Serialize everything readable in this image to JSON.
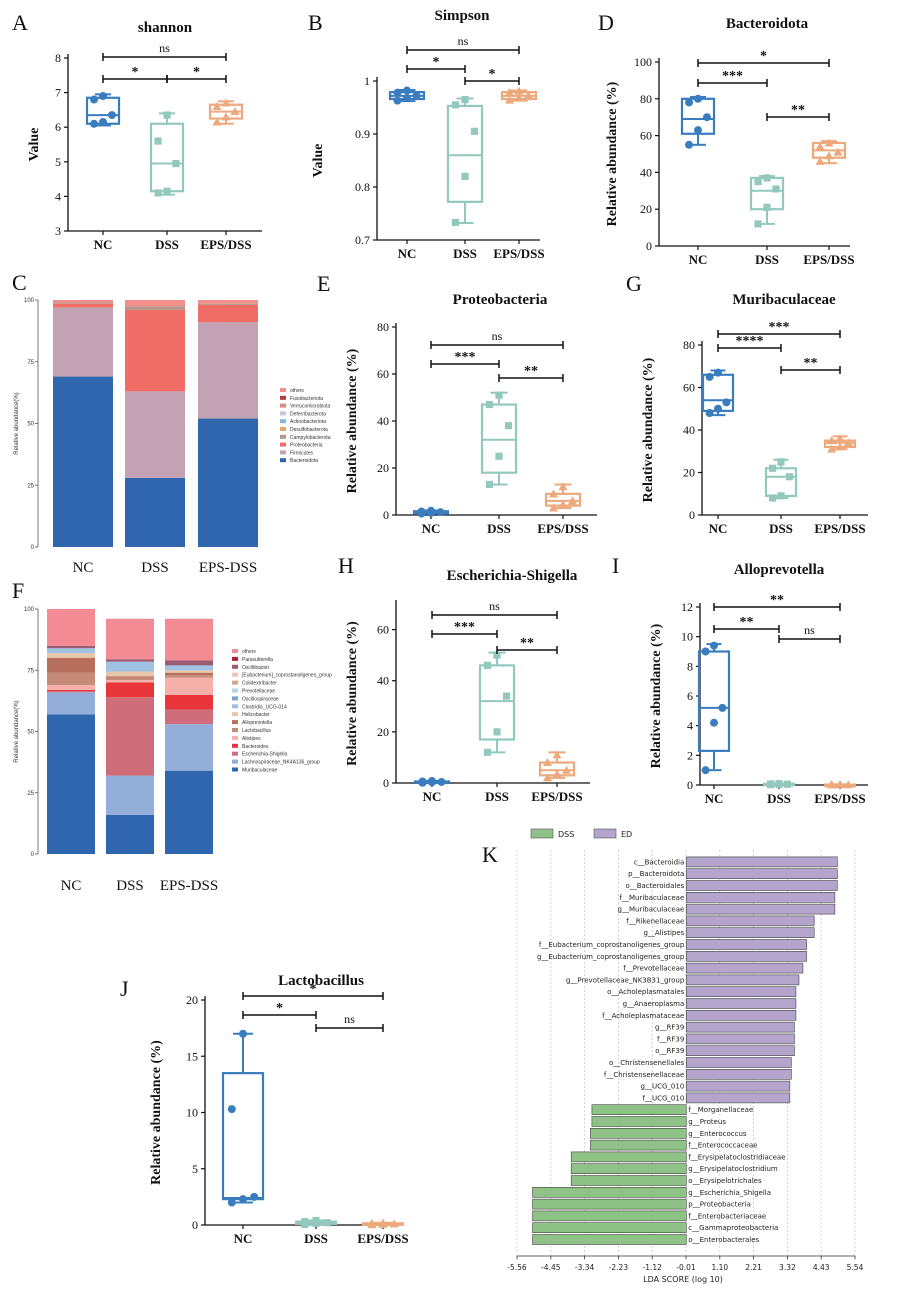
{
  "colors": {
    "NC": "#3a7dbf",
    "DSS": "#93c9bd",
    "EPS": "#eda87c",
    "ink": "#111111",
    "lda_dss": "#8fc286",
    "lda_ed": "#b4a5cd"
  },
  "chart_data": [
    {
      "panel": "A",
      "type": "box",
      "title": "shannon",
      "ylabel": "Value",
      "ylim": [
        3,
        8
      ],
      "yticks": [
        3,
        4,
        5,
        6,
        7,
        8
      ],
      "categories": [
        "NC",
        "DSS",
        "EPS/DSS"
      ],
      "groups": [
        {
          "q1": 6.1,
          "med": 6.35,
          "q3": 6.85,
          "min": 6.05,
          "max": 6.95,
          "pts": [
            6.1,
            6.15,
            6.35,
            6.8,
            6.9
          ]
        },
        {
          "q1": 4.15,
          "med": 4.95,
          "q3": 6.1,
          "min": 4.05,
          "max": 6.4,
          "pts": [
            4.1,
            4.15,
            4.95,
            5.6,
            6.35
          ]
        },
        {
          "q1": 6.25,
          "med": 6.45,
          "q3": 6.65,
          "min": 6.1,
          "max": 6.75,
          "pts": [
            6.15,
            6.3,
            6.45,
            6.6,
            6.7
          ]
        }
      ],
      "sig": [
        {
          "from": 0,
          "to": 2,
          "label": "ns",
          "level": 2
        },
        {
          "from": 0,
          "to": 1,
          "label": "*",
          "level": 1
        },
        {
          "from": 1,
          "to": 2,
          "label": "*",
          "level": 0
        }
      ]
    },
    {
      "panel": "B",
      "type": "box",
      "title": "Simpson",
      "ylabel": "Value",
      "ylim": [
        0.7,
        1.0
      ],
      "yticks": [
        0.7,
        0.8,
        0.9,
        1.0
      ],
      "categories": [
        "NC",
        "DSS",
        "EPS/DSS"
      ],
      "groups": [
        {
          "q1": 0.966,
          "med": 0.972,
          "q3": 0.979,
          "min": 0.962,
          "max": 0.983,
          "pts": [
            0.963,
            0.968,
            0.972,
            0.978,
            0.982
          ]
        },
        {
          "q1": 0.772,
          "med": 0.86,
          "q3": 0.953,
          "min": 0.732,
          "max": 0.967,
          "pts": [
            0.733,
            0.82,
            0.905,
            0.955,
            0.965
          ]
        },
        {
          "q1": 0.966,
          "med": 0.972,
          "q3": 0.979,
          "min": 0.963,
          "max": 0.982,
          "pts": [
            0.964,
            0.968,
            0.973,
            0.978,
            0.981
          ]
        }
      ],
      "sig": [
        {
          "from": 0,
          "to": 2,
          "label": "ns",
          "level": 2
        },
        {
          "from": 0,
          "to": 1,
          "label": "*",
          "level": 1
        },
        {
          "from": 1,
          "to": 2,
          "label": "*",
          "level": 0
        }
      ]
    },
    {
      "panel": "D",
      "type": "box",
      "title": "Bacteroidota",
      "ylabel": "Relative abundance (%)",
      "ylim": [
        0,
        100
      ],
      "yticks": [
        0,
        20,
        40,
        60,
        80,
        100
      ],
      "categories": [
        "NC",
        "DSS",
        "EPS/DSS"
      ],
      "groups": [
        {
          "q1": 61,
          "med": 69,
          "q3": 80,
          "min": 55,
          "max": 81,
          "pts": [
            55,
            63,
            70,
            78,
            80
          ]
        },
        {
          "q1": 20,
          "med": 30,
          "q3": 37,
          "min": 12,
          "max": 38,
          "pts": [
            12,
            21,
            31,
            35,
            37
          ]
        },
        {
          "q1": 48,
          "med": 52,
          "q3": 56,
          "min": 45,
          "max": 57,
          "pts": [
            46,
            49,
            51,
            54,
            56
          ]
        }
      ],
      "sig": [
        {
          "from": 0,
          "to": 2,
          "label": "*",
          "level": 2
        },
        {
          "from": 0,
          "to": 1,
          "label": "***",
          "level": 1
        },
        {
          "from": 1,
          "to": 2,
          "label": "**",
          "level": 0
        }
      ]
    },
    {
      "panel": "C",
      "type": "stacked_bar",
      "ylabel": "Relative abundance(%)",
      "yticks": [
        0,
        25,
        50,
        75,
        100
      ],
      "categories": [
        "NC",
        "DSS",
        "EPS-DSS"
      ],
      "legend": [
        "others",
        "Fusobacteriota",
        "Verrucomicrobiota",
        "Deferribacterota",
        "Actinobacteriota",
        "Desulfobacterota",
        "Campylobacterota",
        "Proteobacteria",
        "Firmicutes",
        "Bacteroidota"
      ],
      "series": [
        {
          "name": "Bacteroidota",
          "values": [
            69,
            28,
            52
          ]
        },
        {
          "name": "Firmicutes",
          "values": [
            28,
            35,
            39
          ]
        },
        {
          "name": "Proteobacteria",
          "values": [
            1.5,
            33,
            7
          ]
        },
        {
          "name": "Campylobacterota",
          "values": [
            0.5,
            1.5,
            0.5
          ]
        },
        {
          "name": "others",
          "values": [
            1,
            2.5,
            1.5
          ]
        }
      ]
    },
    {
      "panel": "E",
      "type": "box",
      "title": "Proteobacteria",
      "ylabel": "Relative abundance (%)",
      "ylim": [
        0,
        80
      ],
      "yticks": [
        0,
        20,
        40,
        60,
        80
      ],
      "categories": [
        "NC",
        "DSS",
        "EPS/DSS"
      ],
      "groups": [
        {
          "q1": 0.8,
          "med": 1.2,
          "q3": 1.6,
          "min": 0.6,
          "max": 1.9,
          "pts": [
            0.6,
            0.9,
            1.2,
            1.5,
            1.8
          ]
        },
        {
          "q1": 18,
          "med": 32,
          "q3": 47,
          "min": 13,
          "max": 52,
          "pts": [
            13,
            25,
            38,
            47,
            51
          ]
        },
        {
          "q1": 4,
          "med": 6,
          "q3": 9,
          "min": 3,
          "max": 13,
          "pts": [
            3,
            4.5,
            6,
            9,
            12
          ]
        }
      ],
      "sig": [
        {
          "from": 0,
          "to": 2,
          "label": "ns",
          "level": 2
        },
        {
          "from": 0,
          "to": 1,
          "label": "***",
          "level": 1
        },
        {
          "from": 1,
          "to": 2,
          "label": "**",
          "level": 0
        }
      ]
    },
    {
      "panel": "G",
      "type": "box",
      "title": "Muribaculaceae",
      "ylabel": "Relative abundance (%)",
      "ylim": [
        0,
        80
      ],
      "yticks": [
        0,
        20,
        40,
        60,
        80
      ],
      "categories": [
        "NC",
        "DSS",
        "EPS/DSS"
      ],
      "groups": [
        {
          "q1": 49,
          "med": 54,
          "q3": 66,
          "min": 47,
          "max": 68,
          "pts": [
            48,
            50,
            53,
            65,
            67
          ]
        },
        {
          "q1": 9,
          "med": 18,
          "q3": 22,
          "min": 8,
          "max": 26,
          "pts": [
            8,
            9,
            18,
            22,
            25
          ]
        },
        {
          "q1": 32,
          "med": 34,
          "q3": 35,
          "min": 31,
          "max": 37,
          "pts": [
            31,
            32,
            34,
            35,
            36
          ]
        }
      ],
      "sig": [
        {
          "from": 0,
          "to": 2,
          "label": "***",
          "level": 2
        },
        {
          "from": 0,
          "to": 1,
          "label": "****",
          "level": 1
        },
        {
          "from": 1,
          "to": 2,
          "label": "**",
          "level": 0
        }
      ]
    },
    {
      "panel": "F",
      "type": "stacked_bar",
      "ylabel": "Relative abundance(%)",
      "yticks": [
        0,
        25,
        50,
        75,
        100
      ],
      "categories": [
        "NC",
        "DSS",
        "EPS-DSS"
      ],
      "legend": [
        "others",
        "Parasutterella",
        "Oscillibacter",
        "[Eubacterium]_coprostanoligenes_group",
        "Colidextribacter",
        "Prevotellaceae",
        "Oscillospiraceae",
        "Clostridia_UCG-014",
        "Helicobacter",
        "Alloprevotella",
        "Lactobacillus",
        "Alistipes",
        "Bacteroides",
        "Escherichia-Shigella",
        "Lachnospiraceae_NK4A136_group",
        "Muribaculaceae"
      ],
      "series": [
        {
          "name": "Muribaculaceae",
          "values": [
            57,
            16,
            34
          ]
        },
        {
          "name": "Lachnospiraceae_NK4A136_group",
          "values": [
            9,
            16,
            19
          ]
        },
        {
          "name": "Escherichia-Shigella",
          "values": [
            0.5,
            32,
            6
          ]
        },
        {
          "name": "Bacteroides",
          "values": [
            0.5,
            6,
            6
          ]
        },
        {
          "name": "Alistipes",
          "values": [
            2,
            1,
            7
          ]
        },
        {
          "name": "Lactobacillus",
          "values": [
            5,
            1,
            1
          ]
        },
        {
          "name": "Alloprevotella",
          "values": [
            6,
            0.5,
            1
          ]
        },
        {
          "name": "Helicobacter",
          "values": [
            2,
            2,
            1
          ]
        },
        {
          "name": "Clostridia_UCG-014",
          "values": [
            2,
            4,
            2
          ]
        },
        {
          "name": "Oscillibacter",
          "values": [
            1,
            1,
            2
          ]
        },
        {
          "name": "others",
          "values": [
            15,
            16.5,
            17
          ]
        }
      ]
    },
    {
      "panel": "H",
      "type": "box",
      "title": "Escherichia-Shigella",
      "ylabel": "Relative abundance (%)",
      "ylim": [
        0,
        70
      ],
      "yticks": [
        0,
        20,
        40,
        60
      ],
      "categories": [
        "NC",
        "DSS",
        "EPS/DSS"
      ],
      "groups": [
        {
          "q1": 0.2,
          "med": 0.4,
          "q3": 0.6,
          "min": 0.1,
          "max": 0.8,
          "pts": [
            0.1,
            0.3,
            0.4,
            0.6,
            0.8
          ]
        },
        {
          "q1": 17,
          "med": 32,
          "q3": 46,
          "min": 12,
          "max": 51,
          "pts": [
            12,
            20,
            34,
            46,
            50
          ]
        },
        {
          "q1": 3,
          "med": 5,
          "q3": 8,
          "min": 2,
          "max": 12,
          "pts": [
            2,
            3.5,
            5,
            8,
            11
          ]
        }
      ],
      "sig": [
        {
          "from": 0,
          "to": 2,
          "label": "ns",
          "level": 2
        },
        {
          "from": 0,
          "to": 1,
          "label": "***",
          "level": 1
        },
        {
          "from": 1,
          "to": 2,
          "label": "**",
          "level": 0
        }
      ]
    },
    {
      "panel": "I",
      "type": "box",
      "title": "Alloprevotella",
      "ylabel": "Relative abundance (%)",
      "ylim": [
        0,
        12
      ],
      "yticks": [
        0,
        2,
        4,
        6,
        8,
        10,
        12
      ],
      "categories": [
        "NC",
        "DSS",
        "EPS/DSS"
      ],
      "groups": [
        {
          "q1": 2.3,
          "med": 5.2,
          "q3": 9.0,
          "min": 1.0,
          "max": 9.5,
          "pts": [
            1.0,
            4.2,
            5.2,
            9.0,
            9.4
          ]
        },
        {
          "q1": 0.02,
          "med": 0.05,
          "q3": 0.08,
          "min": 0.01,
          "max": 0.1,
          "pts": [
            0.02,
            0.04,
            0.05,
            0.07,
            0.09
          ]
        },
        {
          "q1": 0.01,
          "med": 0.02,
          "q3": 0.03,
          "min": 0.0,
          "max": 0.04,
          "pts": [
            0.01,
            0.02,
            0.02,
            0.03,
            0.04
          ]
        }
      ],
      "sig": [
        {
          "from": 0,
          "to": 2,
          "label": "**",
          "level": 2
        },
        {
          "from": 0,
          "to": 1,
          "label": "**",
          "level": 1
        },
        {
          "from": 1,
          "to": 2,
          "label": "ns",
          "level": 0
        }
      ]
    },
    {
      "panel": "J",
      "type": "box",
      "title": "Lactobacillus",
      "ylabel": "Relative abundance (%)",
      "ylim": [
        0,
        20
      ],
      "yticks": [
        0,
        5,
        10,
        15,
        20
      ],
      "categories": [
        "NC",
        "DSS",
        "EPS/DSS"
      ],
      "groups": [
        {
          "q1": 2.3,
          "med": 2.4,
          "q3": 13.5,
          "min": 2.0,
          "max": 17.0,
          "pts": [
            2.0,
            2.3,
            2.5,
            10.3,
            17.0
          ]
        },
        {
          "q1": 0.1,
          "med": 0.2,
          "q3": 0.3,
          "min": 0.05,
          "max": 0.4,
          "pts": [
            0.05,
            0.15,
            0.2,
            0.3,
            0.4
          ]
        },
        {
          "q1": 0.05,
          "med": 0.1,
          "q3": 0.15,
          "min": 0.02,
          "max": 0.2,
          "pts": [
            0.02,
            0.06,
            0.1,
            0.14,
            0.18
          ]
        }
      ],
      "sig": [
        {
          "from": 0,
          "to": 2,
          "label": "*",
          "level": 2
        },
        {
          "from": 0,
          "to": 1,
          "label": "*",
          "level": 1
        },
        {
          "from": 1,
          "to": 2,
          "label": "ns",
          "level": 0
        }
      ]
    },
    {
      "panel": "K",
      "type": "lda_bar",
      "xlabel": "LDA SCORE (log 10)",
      "legend": [
        "DSS",
        "ED"
      ],
      "xticks": [
        "-5.56",
        "-4.45",
        "-3.34",
        "-2.23",
        "-1.12",
        "-0.01",
        "1.10",
        "2.21",
        "3.32",
        "4.43",
        "5.54"
      ],
      "xlim": [
        -5.56,
        5.54
      ],
      "items": [
        {
          "name": "c__Bacteroidia",
          "value": 4.96,
          "group": "ED"
        },
        {
          "name": "p__Bacteroidota",
          "value": 4.96,
          "group": "ED"
        },
        {
          "name": "o__Bacteroidales",
          "value": 4.96,
          "group": "ED"
        },
        {
          "name": "f__Muribaculaceae",
          "value": 4.88,
          "group": "ED"
        },
        {
          "name": "g__Muribaculaceae",
          "value": 4.88,
          "group": "ED"
        },
        {
          "name": "f__Rikenellaceae",
          "value": 4.2,
          "group": "ED"
        },
        {
          "name": "g__Alistipes",
          "value": 4.2,
          "group": "ED"
        },
        {
          "name": "f__Eubacterium_coprostanoligenes_group",
          "value": 3.95,
          "group": "ED"
        },
        {
          "name": "g__Eubacterium_coprostanoligenes_group",
          "value": 3.95,
          "group": "ED"
        },
        {
          "name": "f__Prevotellaceae",
          "value": 3.83,
          "group": "ED"
        },
        {
          "name": "g__Prevotellaceae_NK3B31_group",
          "value": 3.7,
          "group": "ED"
        },
        {
          "name": "o__Acholeplasmatales",
          "value": 3.6,
          "group": "ED"
        },
        {
          "name": "g__Anaeroplasma",
          "value": 3.6,
          "group": "ED"
        },
        {
          "name": "f__Acholeplasmataceae",
          "value": 3.6,
          "group": "ED"
        },
        {
          "name": "g__RF39",
          "value": 3.55,
          "group": "ED"
        },
        {
          "name": "f__RF39",
          "value": 3.55,
          "group": "ED"
        },
        {
          "name": "o__RF39",
          "value": 3.55,
          "group": "ED"
        },
        {
          "name": "o__Christensenellales",
          "value": 3.45,
          "group": "ED"
        },
        {
          "name": "f__Christensenellaceae",
          "value": 3.45,
          "group": "ED"
        },
        {
          "name": "g__UCG_010",
          "value": 3.4,
          "group": "ED"
        },
        {
          "name": "f__UCG_010",
          "value": 3.4,
          "group": "ED"
        },
        {
          "name": "f__Morganellaceae",
          "value": -3.1,
          "group": "DSS"
        },
        {
          "name": "g__Proteus",
          "value": -3.1,
          "group": "DSS"
        },
        {
          "name": "g__Enterococcus",
          "value": -3.15,
          "group": "DSS"
        },
        {
          "name": "f__Enterococcaceae",
          "value": -3.15,
          "group": "DSS"
        },
        {
          "name": "f__Erysipelatoclostridiaceae",
          "value": -3.78,
          "group": "DSS"
        },
        {
          "name": "g__Erysipelatoclostridium",
          "value": -3.78,
          "group": "DSS"
        },
        {
          "name": "o__Erysipelotrichales",
          "value": -3.78,
          "group": "DSS"
        },
        {
          "name": "g__Escherichia_Shigella",
          "value": -5.05,
          "group": "DSS"
        },
        {
          "name": "p__Proteobacteria",
          "value": -5.05,
          "group": "DSS"
        },
        {
          "name": "f__Enterobacteriaceae",
          "value": -5.05,
          "group": "DSS"
        },
        {
          "name": "c__Gammaproteobacteria",
          "value": -5.05,
          "group": "DSS"
        },
        {
          "name": "o__Enterobacterales",
          "value": -5.05,
          "group": "DSS"
        }
      ]
    }
  ]
}
